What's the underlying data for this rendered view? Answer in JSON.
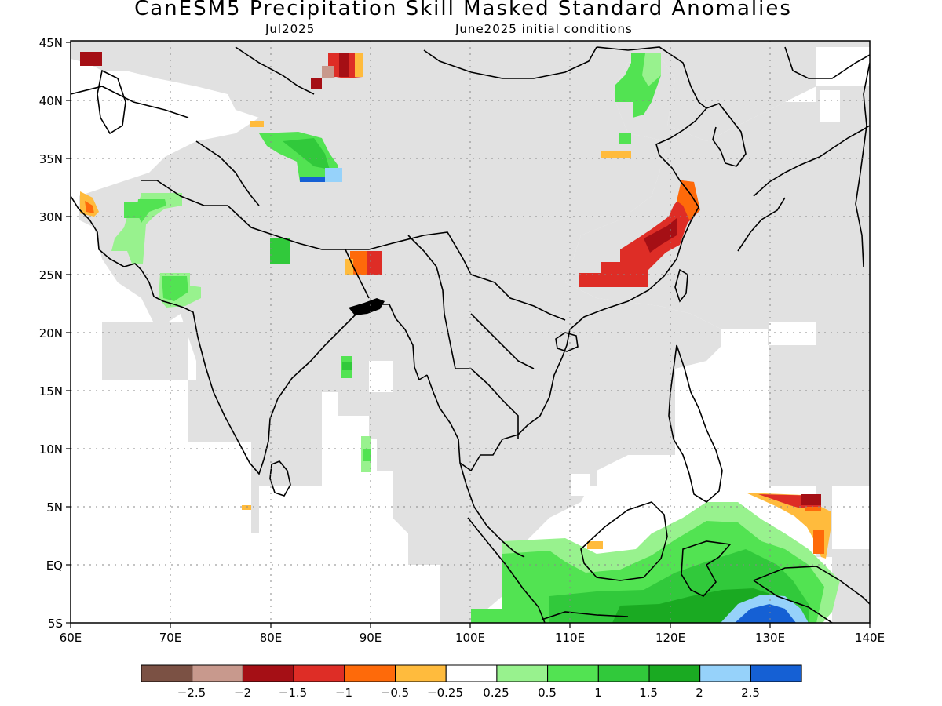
{
  "title": "CanESM5 Precipitation Skill Masked Standard Anomalies",
  "subtitle_left": "Jul2025",
  "subtitle_right": "June2025 initial conditions",
  "lat_ticks": [
    "45N",
    "40N",
    "35N",
    "30N",
    "25N",
    "20N",
    "15N",
    "10N",
    "5N",
    "EQ",
    "5S"
  ],
  "lon_ticks": [
    "60E",
    "70E",
    "80E",
    "90E",
    "100E",
    "110E",
    "120E",
    "130E",
    "140E"
  ],
  "colorbar": {
    "colors": [
      "#7b5144",
      "#c8998d",
      "#a50f15",
      "#de2d26",
      "#fe6a0a",
      "#ffbb3d",
      "#ffffff",
      "#98f28e",
      "#52e352",
      "#31c93b",
      "#1aaa22",
      "#96d2fa",
      "#1560d4"
    ],
    "labels": [
      "−2.5",
      "−2",
      "−1.5",
      "−1",
      "−0.5",
      "−0.25",
      "0.25",
      "0.5",
      "1",
      "1.5",
      "2",
      "2.5"
    ]
  },
  "colors": {
    "mask_gray": "#e1e1e1",
    "coast": "#000000"
  }
}
